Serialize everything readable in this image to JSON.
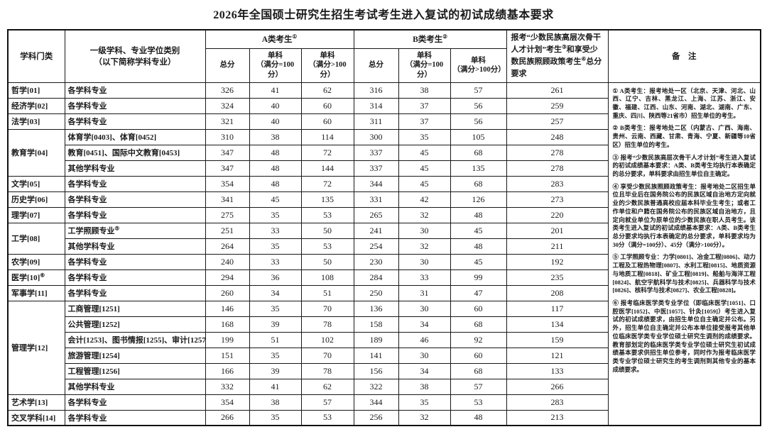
{
  "title": "2026年全国硕士研究生招生考试考生进入复试的初试成绩基本要求",
  "table": {
    "header": {
      "col_category": "学科门类",
      "col_specialty": "一级学科、专业学位类别\n（以下简称学科专业）",
      "group_a": {
        "label": "A类考生",
        "sup": "①"
      },
      "group_b": {
        "label": "B类考生",
        "sup": "②"
      },
      "sub_total": "总分",
      "sub_100": "单科\n（满分=100分）",
      "sub_gt100": "单科\n（满分>100分）",
      "minority_parts": [
        {
          "t": "报考“少数民族高层次骨干人才计划”考生"
        },
        {
          "sup": "③"
        },
        {
          "t": "和享受少数民族照顾政策考生"
        },
        {
          "sup": "④"
        },
        {
          "t": "总分要求"
        }
      ],
      "remark": "备　注"
    },
    "rows": [
      {
        "cat": "哲学[01]",
        "catSpan": 1,
        "spec": "各学科专业",
        "vals": [
          326,
          41,
          62,
          316,
          38,
          57,
          261
        ]
      },
      {
        "cat": "经济学[02]",
        "catSpan": 1,
        "spec": "各学科专业",
        "vals": [
          324,
          40,
          60,
          314,
          37,
          56,
          259
        ]
      },
      {
        "cat": "法学[03]",
        "catSpan": 1,
        "spec": "各学科专业",
        "vals": [
          321,
          40,
          60,
          311,
          37,
          56,
          257
        ]
      },
      {
        "cat": "教育学[04]",
        "catSpan": 3,
        "spec": "体育学[0403]、体育[0452]",
        "vals": [
          310,
          38,
          114,
          300,
          35,
          105,
          248
        ]
      },
      {
        "spec": "教育[0451]、国际中文教育[0453]",
        "vals": [
          347,
          48,
          72,
          337,
          45,
          68,
          278
        ]
      },
      {
        "spec": "其他学科专业",
        "vals": [
          347,
          48,
          144,
          337,
          45,
          135,
          278
        ]
      },
      {
        "cat": "文学[05]",
        "catSpan": 1,
        "spec": "各学科专业",
        "vals": [
          354,
          48,
          72,
          344,
          45,
          68,
          283
        ]
      },
      {
        "cat": "历史学[06]",
        "catSpan": 1,
        "spec": "各学科专业",
        "vals": [
          341,
          45,
          135,
          331,
          42,
          126,
          273
        ]
      },
      {
        "cat": "理学[07]",
        "catSpan": 1,
        "spec": "各学科专业",
        "vals": [
          275,
          35,
          53,
          265,
          32,
          48,
          220
        ]
      },
      {
        "cat": "工学[08]",
        "catSpan": 2,
        "spec": "工学照顾专业",
        "specSup": "⑤",
        "vals": [
          251,
          33,
          50,
          241,
          30,
          45,
          201
        ]
      },
      {
        "spec": "其他学科专业",
        "vals": [
          264,
          35,
          53,
          254,
          32,
          48,
          211
        ]
      },
      {
        "cat": "农学[09]",
        "catSpan": 1,
        "spec": "各学科专业",
        "vals": [
          240,
          33,
          50,
          230,
          30,
          45,
          192
        ]
      },
      {
        "cat": "医学[10]",
        "catSup": "⑥",
        "catSpan": 1,
        "spec": "各学科专业",
        "vals": [
          294,
          36,
          108,
          284,
          33,
          99,
          235
        ]
      },
      {
        "cat": "军事学[11]",
        "catSpan": 1,
        "spec": "各学科专业",
        "vals": [
          260,
          34,
          51,
          250,
          31,
          47,
          208
        ]
      },
      {
        "cat": "管理学[12]",
        "catSpan": 6,
        "spec": "工商管理[1251]",
        "vals": [
          146,
          35,
          70,
          136,
          30,
          60,
          117
        ]
      },
      {
        "spec": "公共管理[1252]",
        "vals": [
          168,
          39,
          78,
          158,
          34,
          68,
          134
        ]
      },
      {
        "spec": "会计[1253]、图书情报[1255]、审计[1257]",
        "vals": [
          199,
          51,
          102,
          189,
          46,
          92,
          159
        ]
      },
      {
        "spec": "旅游管理[1254]",
        "vals": [
          151,
          35,
          70,
          141,
          30,
          60,
          121
        ]
      },
      {
        "spec": "工程管理[1256]",
        "vals": [
          166,
          39,
          78,
          156,
          34,
          68,
          133
        ]
      },
      {
        "spec": "其他学科专业",
        "vals": [
          332,
          41,
          62,
          322,
          38,
          57,
          266
        ]
      },
      {
        "cat": "艺术学[13]",
        "catSpan": 1,
        "spec": "各学科专业",
        "vals": [
          354,
          38,
          57,
          344,
          35,
          53,
          283
        ]
      },
      {
        "cat": "交叉学科[14]",
        "catSpan": 1,
        "spec": "各学科专业",
        "vals": [
          266,
          35,
          53,
          256,
          32,
          48,
          213
        ]
      }
    ],
    "notes": [
      "① A类考生：报考地处一区（北京、天津、河北、山西、辽宁、吉林、黑龙江、上海、江苏、浙江、安徽、福建、江西、山东、河南、湖北、湖南、广东、重庆、四川、陕西等21省市）招生单位的考生。",
      "② B类考生：报考地处二区（内蒙古、广西、海南、贵州、云南、西藏、甘肃、青海、宁夏、新疆等10省区）招生单位的考生。",
      "③ 报考“少数民族高层次骨干人才计划”考生进入复试的初试成绩基本要求：A类、B类考生均执行本表确定的总分要求，单科要求由招生单位自主确定。",
      "④ 享受少数民族照顾政策考生：报考地处二区招生单位且毕业后在国务院公布的民族区域自治地方定向就业的少数民族普通高校应届本科毕业生考生；或者工作单位和户籍在国务院公布的民族区域自治地方，且定向就业单位为原单位的少数民族在职人员考生。该类考生进入复试的初试成绩基本要求：A类、B类考生总分要求均执行本表确定的总分要求，单科要求均为30分（满分=100分）、45分（满分>100分）。",
      "⑤ 工学照顾专业：力学[0801]、冶金工程[0806]、动力工程及工程热物理[0807]、水利工程[0815]、地质资源与地质工程[0818]、矿业工程[0819]、船舶与海洋工程[0824]、航空宇航科学与技术[0825]、兵器科学与技术[0826]、核科学与技术[0827]、农业工程[0828]。",
      "⑥ 报考临床医学类专业学位（即临床医学[1051]、口腔医学[1052]、中医[1057]、针灸[1059]）考生进入复试的初试成绩要求，由招生单位自主确定并公布。另外，招生单位自主确定并公布本单位接受报考其他单位临床医学类专业学位硕士研究生调剂的成绩要求。教育部划定的临床医学类专业学位硕士研究生初试成绩基本要求供招生单位参考，同时作为报考临床医学类专业学位硕士研究生的考生调剂到其他专业的基本成绩要求。"
    ]
  }
}
